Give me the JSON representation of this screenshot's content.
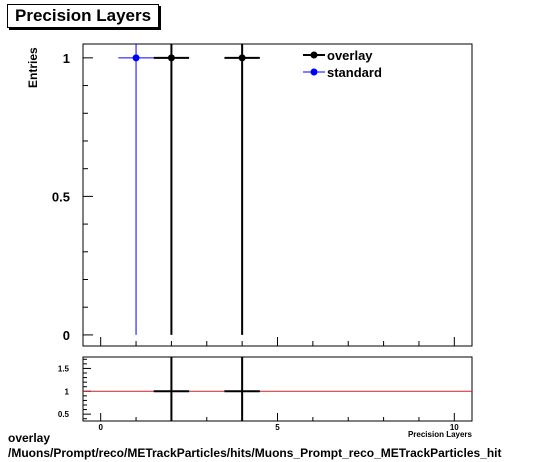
{
  "chart_data": [
    {
      "type": "scatter",
      "title": "Precision Layers",
      "ylabel": "Entries",
      "xlim": [
        -0.5,
        10.5
      ],
      "ylim": [
        -0.04,
        1.05
      ],
      "yticks": [
        {
          "v": 0,
          "label": "0"
        },
        {
          "v": 0.5,
          "label": "0.5"
        },
        {
          "v": 1,
          "label": "1"
        }
      ],
      "legend_position": "top-right",
      "series": [
        {
          "name": "overlay",
          "color": "#000000",
          "points": [
            {
              "x": 2,
              "y": 1,
              "xerr": 0.5,
              "yerr": 1
            },
            {
              "x": 4,
              "y": 1,
              "xerr": 0.5,
              "yerr": 1
            }
          ]
        },
        {
          "name": "standard",
          "color": "#0000ff",
          "points": [
            {
              "x": 1,
              "y": 1,
              "xerr": 0.5,
              "yerr": 1
            }
          ]
        }
      ]
    },
    {
      "type": "scatter",
      "xlabel": "Precision Layers",
      "xlim": [
        -0.5,
        10.5
      ],
      "ylim": [
        0.35,
        1.75
      ],
      "xticks": [
        {
          "v": 0,
          "label": "0"
        },
        {
          "v": 5,
          "label": "5"
        },
        {
          "v": 10,
          "label": "10"
        }
      ],
      "yticks": [
        {
          "v": 0.5,
          "label": "0.5"
        },
        {
          "v": 1,
          "label": "1"
        },
        {
          "v": 1.5,
          "label": "1.5"
        }
      ],
      "reference_line": {
        "y": 1,
        "color": "#cc2222"
      },
      "points": [
        {
          "x": 2,
          "y": 1,
          "xerr": 0.5,
          "yerr": 2
        },
        {
          "x": 4,
          "y": 1,
          "xerr": 0.5,
          "yerr": 2
        }
      ]
    }
  ],
  "footer": {
    "line1": "overlay",
    "line2": "/Muons/Prompt/reco/METrackParticles/hits/Muons_Prompt_reco_METrackParticles_hit"
  }
}
